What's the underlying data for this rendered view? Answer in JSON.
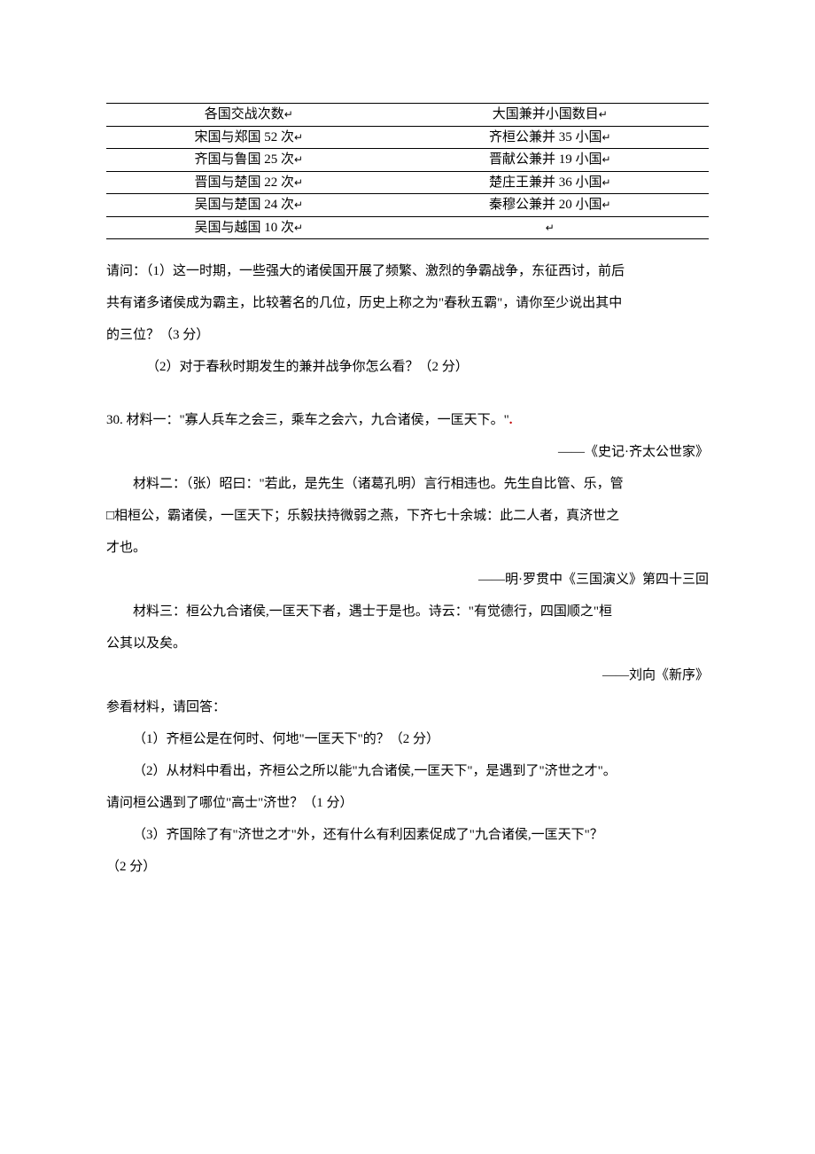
{
  "table": {
    "header": {
      "left": "各国交战次数",
      "right": "大国兼并小国数目"
    },
    "rows": [
      {
        "left": "宋国与郑国 52 次",
        "right": "齐桓公兼并 35 小国"
      },
      {
        "left": "齐国与鲁国 25 次",
        "right": "晋献公兼并 19 小国"
      },
      {
        "left": "晋国与楚国 22 次",
        "right": "楚庄王兼并 36 小国"
      },
      {
        "left": "吴国与楚国 24 次",
        "right": "秦穆公兼并 20 小国"
      },
      {
        "left": "吴国与越国 10 次",
        "right": ""
      }
    ],
    "cr_glyph": "↵"
  },
  "q29": {
    "intro1": "请问：（1）这一时期，一些强大的诸侯国开展了频繁、激烈的争霸战争，东征西讨，前后",
    "intro2": "共有诸多诸侯成为霸主，比较著名的几位，历史上称之为\"春秋五霸\"，请你至少说出其中",
    "intro3": "的三位？（3 分）",
    "q2": "（2）对于春秋时期发生的兼并战争你怎么看？（2 分）"
  },
  "q30": {
    "m1_label": "30. 材料一：",
    "m1_text": "\"寡人兵车之会三，乘车之会六，九合诸侯，一匡天下。\"",
    "m1_cite": "——《史记·齐太公世家》",
    "m2_label": "材料二：",
    "m2_line1": "（张）昭曰：\"若此，是先生（诸葛孔明）言行相违也。先生自比管、乐，管",
    "m2_line2": "□相桓公，霸诸侯，一匡天下；乐毅扶持微弱之燕，下齐七十余城：此二人者，真济世之",
    "m2_line3": "才也。",
    "m2_cite": "——明·罗贯中《三国演义》第四十三回",
    "m3_label": "材料三：",
    "m3_line1": "桓公九合诸侯,一匡天下者，遇士于是也。诗云：\"有觉德行，四国顺之\"桓",
    "m3_line2": "公其以及矣。",
    "m3_cite": "——刘向《新序》",
    "prompt": "参看材料，请回答：",
    "sub1": "（1）齐桓公是在何时、何地\"一匡天下\"的？（2 分）",
    "sub2a": "（2）从材料中看出，齐桓公之所以能\"九合诸侯,一匡天下\"，是遇到了\"济世之才\"。",
    "sub2b": "请问桓公遇到了哪位\"高士\"济世？（1 分）",
    "sub3a": "（3）齐国除了有\"济世之才\"外，还有什么有利因素促成了\"九合诸侯,一匡天下\"？",
    "sub3b": "（2 分）"
  }
}
